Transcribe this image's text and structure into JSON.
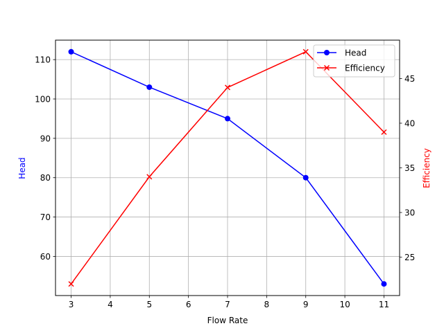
{
  "chart_data": {
    "type": "line",
    "title": "",
    "xlabel": "Flow Rate",
    "ylabel": "Head",
    "ylabel_right": "Efficiency",
    "x": [
      3,
      5,
      7,
      9,
      11
    ],
    "series": [
      {
        "name": "Head",
        "axis": "left",
        "color": "#0000ff",
        "marker": "circle",
        "values": [
          112,
          103,
          95,
          80,
          53
        ]
      },
      {
        "name": "Efficiency",
        "axis": "right",
        "color": "#ff0000",
        "marker": "x",
        "values": [
          22,
          34,
          44,
          48,
          39
        ]
      }
    ],
    "xticks": [
      "3",
      "4",
      "5",
      "6",
      "7",
      "8",
      "9",
      "10",
      "11"
    ],
    "yticks_left": [
      "60",
      "70",
      "80",
      "90",
      "100",
      "110"
    ],
    "yticks_right": [
      "25",
      "30",
      "35",
      "40",
      "45"
    ],
    "xlim": [
      2.6,
      11.4
    ],
    "ylim_left": [
      50.05,
      114.95
    ],
    "ylim_right": [
      20.7,
      49.3
    ],
    "grid": true,
    "legend_position": "upper right"
  },
  "legend": {
    "head": "Head",
    "efficiency": "Efficiency"
  }
}
